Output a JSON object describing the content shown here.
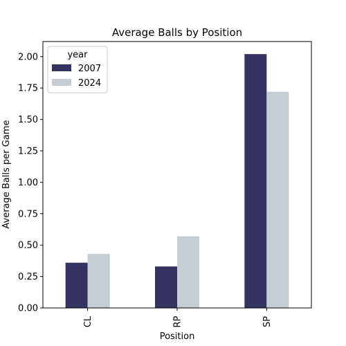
{
  "chart_data": {
    "type": "bar",
    "title": "Average Balls by Position",
    "xlabel": "Position",
    "ylabel": "Average Balls per Game",
    "categories": [
      "CL",
      "RP",
      "SP"
    ],
    "series": [
      {
        "name": "2007",
        "values": [
          0.36,
          0.33,
          2.02
        ],
        "color": "#343362"
      },
      {
        "name": "2024",
        "values": [
          0.43,
          0.57,
          1.72
        ],
        "color": "#c5ccd4"
      }
    ],
    "ylim": [
      0,
      2.12
    ],
    "yticks": [
      "0.00",
      "0.25",
      "0.50",
      "0.75",
      "1.00",
      "1.25",
      "1.50",
      "1.75",
      "2.00"
    ],
    "legend": {
      "title": "year",
      "position": "top-left"
    },
    "grid": false
  }
}
